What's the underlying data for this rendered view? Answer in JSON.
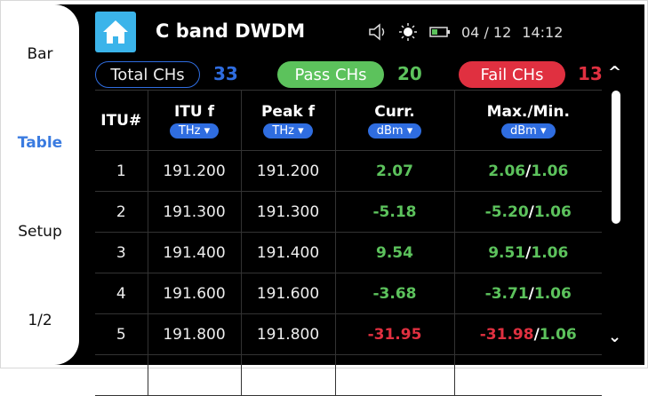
{
  "sidebar": {
    "items": [
      {
        "label": "Bar"
      },
      {
        "label": "Table",
        "active": true
      },
      {
        "label": "Setup"
      },
      {
        "label": "1/2"
      }
    ]
  },
  "header": {
    "title": "C band DWDM",
    "date": "04 / 12",
    "time": "14:12",
    "icons": [
      "home-icon",
      "speaker-icon",
      "brightness-icon",
      "battery-icon"
    ]
  },
  "summary": {
    "total_label": "Total CHs",
    "total": "33",
    "pass_label": "Pass CHs",
    "pass": "20",
    "fail_label": "Fail CHs",
    "fail": "13"
  },
  "colors": {
    "pass": "#5cc25c",
    "fail": "#e03040",
    "accent": "#2f6de0",
    "home": "#3bb4ea"
  },
  "table": {
    "headers": [
      {
        "label": "ITU#"
      },
      {
        "label": "ITU f",
        "unit": "THz"
      },
      {
        "label": "Peak f",
        "unit": "THz"
      },
      {
        "label": "Curr.",
        "unit": "dBm"
      },
      {
        "label": "Max./Min.",
        "unit": "dBm"
      }
    ],
    "rows": [
      {
        "n": "1",
        "itu": "191.200",
        "peak": "191.200",
        "curr": "2.07",
        "max": "2.06",
        "min": "1.06",
        "status": "pass"
      },
      {
        "n": "2",
        "itu": "191.300",
        "peak": "191.300",
        "curr": "-5.18",
        "max": "-5.20",
        "min": "1.06",
        "status": "pass"
      },
      {
        "n": "3",
        "itu": "191.400",
        "peak": "191.400",
        "curr": "9.54",
        "max": "9.51",
        "min": "1.06",
        "status": "pass"
      },
      {
        "n": "4",
        "itu": "191.600",
        "peak": "191.600",
        "curr": "-3.68",
        "max": "-3.71",
        "min": "1.06",
        "status": "pass"
      },
      {
        "n": "5",
        "itu": "191.800",
        "peak": "191.800",
        "curr": "-31.95",
        "max": "-31.98",
        "min": "1.06",
        "status": "fail"
      }
    ]
  },
  "scroll": {
    "up": "^",
    "down": "⌄"
  }
}
